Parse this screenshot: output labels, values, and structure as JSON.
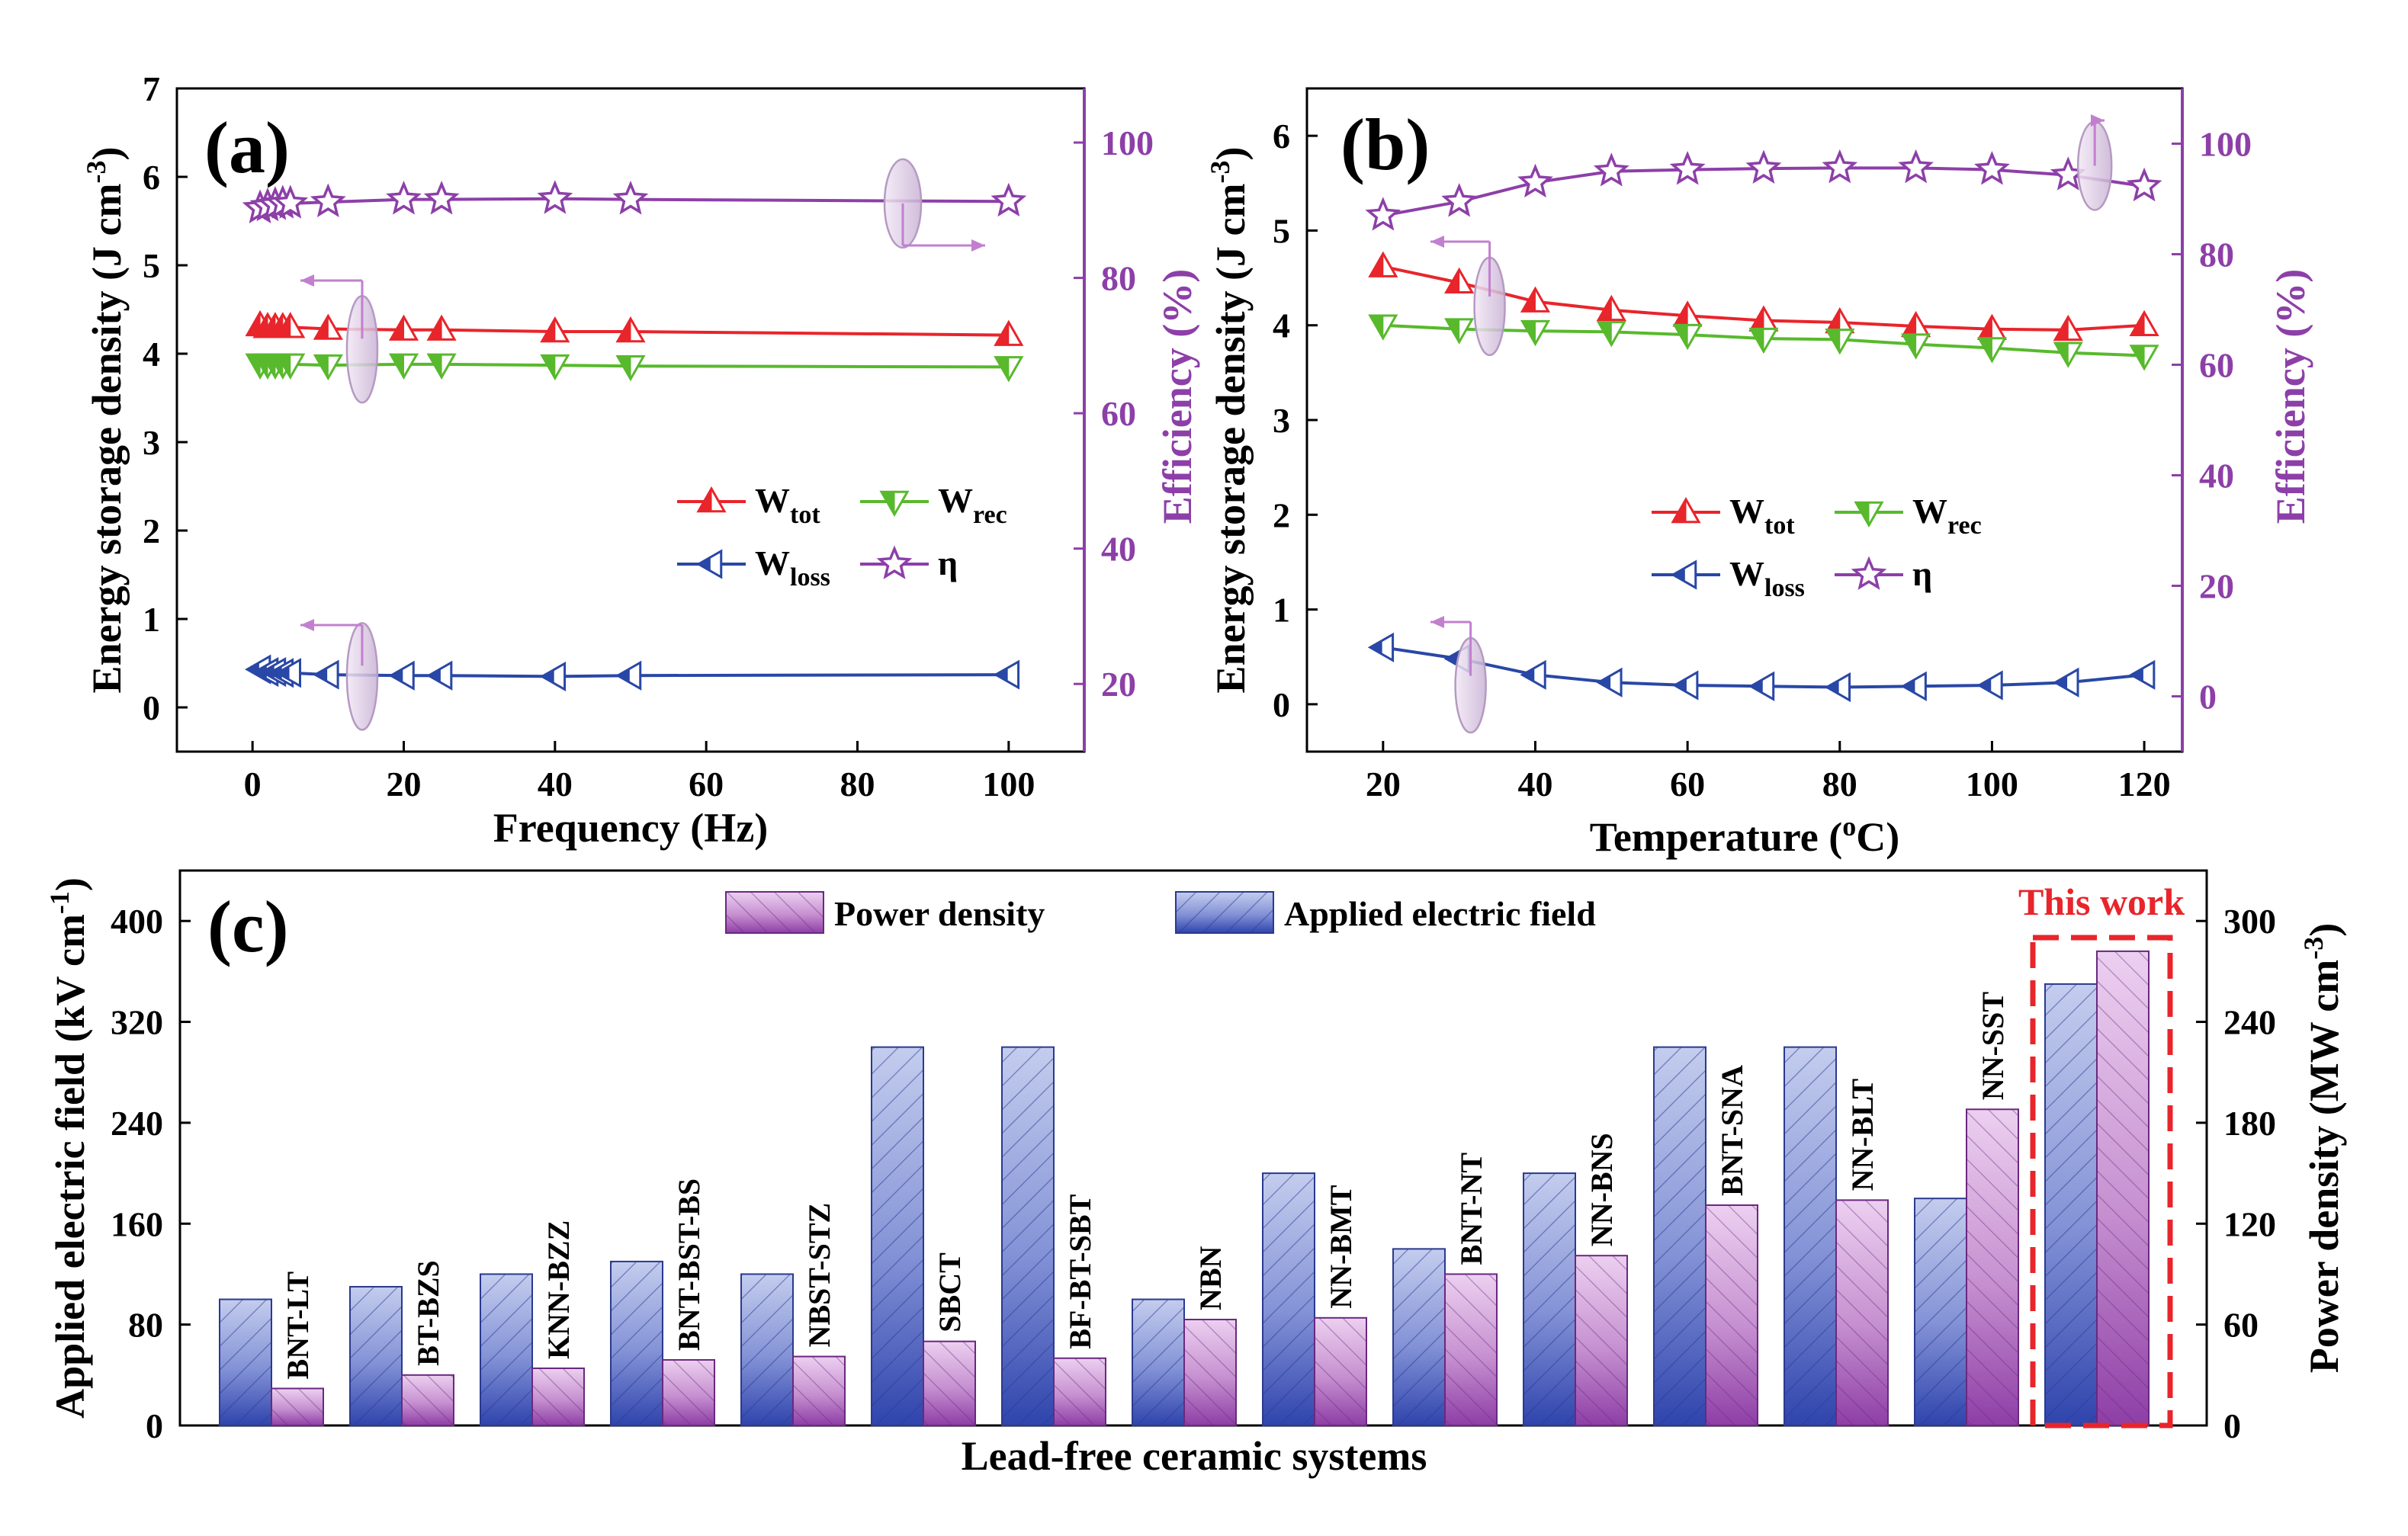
{
  "colors": {
    "wtot": "#e8252b",
    "wrec": "#58b92d",
    "wloss": "#2947a6",
    "eta": "#8d3fa8",
    "blue_fill": "#3d52b5",
    "blue_light": "#c4cdee",
    "purple_fill": "#9a4fb0",
    "purple_light": "#ecd0f0",
    "highlight": "#e8252b"
  },
  "chart_data": [
    {
      "panel": "(a)",
      "type": "line",
      "xlabel": "Frequency (Hz)",
      "ylabel": "Energy storage density (J cm",
      "ylabel_sup": "-3",
      "ylabel_close": ")",
      "y2label": "Efficiency (%)",
      "xlim": [
        -10,
        110
      ],
      "ylim": [
        -0.5,
        7
      ],
      "y2lim": [
        10,
        108
      ],
      "xticks": [
        "0",
        "20",
        "40",
        "60",
        "80",
        "100"
      ],
      "yticks": [
        "0",
        "1",
        "2",
        "3",
        "4",
        "5",
        "6",
        "7"
      ],
      "y2ticks": [
        "20",
        "40",
        "60",
        "80",
        "100"
      ],
      "x": [
        1,
        2,
        3,
        4,
        5,
        10,
        20,
        25,
        40,
        50,
        100
      ],
      "series": [
        {
          "name": "W",
          "sub": "tot",
          "key": "wtot",
          "marker": "tri-up",
          "axis": "left",
          "values": [
            4.32,
            4.3,
            4.3,
            4.3,
            4.3,
            4.28,
            4.27,
            4.27,
            4.25,
            4.25,
            4.21
          ]
        },
        {
          "name": "W",
          "sub": "rec",
          "key": "wrec",
          "marker": "tri-down",
          "axis": "left",
          "values": [
            3.88,
            3.88,
            3.88,
            3.88,
            3.88,
            3.87,
            3.88,
            3.88,
            3.87,
            3.86,
            3.85
          ]
        },
        {
          "name": "W",
          "sub": "loss",
          "key": "wloss",
          "marker": "tri-left",
          "axis": "left",
          "values": [
            0.43,
            0.4,
            0.4,
            0.39,
            0.39,
            0.37,
            0.36,
            0.36,
            0.35,
            0.36,
            0.37
          ]
        },
        {
          "name": "η",
          "sub": "",
          "key": "eta",
          "marker": "star",
          "axis": "right",
          "values": [
            90.3,
            90.6,
            90.8,
            91.0,
            91.0,
            91.2,
            91.6,
            91.6,
            91.7,
            91.6,
            91.3
          ]
        }
      ]
    },
    {
      "panel": "(b)",
      "type": "line",
      "xlabel": "Temperature (",
      "xlabel_sup": "o",
      "xlabel_close": "C)",
      "ylabel": "Energy storage density (J cm",
      "ylabel_sup": "-3",
      "ylabel_close": ")",
      "y2label": "Efficiency (%)",
      "xlim": [
        10,
        125
      ],
      "ylim": [
        -0.5,
        6.5
      ],
      "y2lim": [
        -10,
        110
      ],
      "xticks": [
        "20",
        "40",
        "60",
        "80",
        "100",
        "120"
      ],
      "yticks": [
        "0",
        "1",
        "2",
        "3",
        "4",
        "5",
        "6"
      ],
      "y2ticks": [
        "0",
        "20",
        "40",
        "60",
        "80",
        "100"
      ],
      "x": [
        20,
        30,
        40,
        50,
        60,
        70,
        80,
        90,
        100,
        110,
        120
      ],
      "series": [
        {
          "name": "W",
          "sub": "tot",
          "key": "wtot",
          "marker": "tri-up",
          "axis": "left",
          "values": [
            4.62,
            4.45,
            4.25,
            4.16,
            4.1,
            4.05,
            4.03,
            3.99,
            3.96,
            3.95,
            4.0
          ]
        },
        {
          "name": "W",
          "sub": "rec",
          "key": "wrec",
          "marker": "tri-down",
          "axis": "left",
          "values": [
            4.0,
            3.96,
            3.94,
            3.93,
            3.9,
            3.86,
            3.85,
            3.8,
            3.76,
            3.71,
            3.68
          ]
        },
        {
          "name": "W",
          "sub": "loss",
          "key": "wloss",
          "marker": "tri-left",
          "axis": "left",
          "values": [
            0.6,
            0.48,
            0.31,
            0.23,
            0.2,
            0.19,
            0.18,
            0.19,
            0.2,
            0.23,
            0.31
          ]
        },
        {
          "name": "η",
          "sub": "",
          "key": "eta",
          "marker": "star",
          "axis": "right",
          "values": [
            87,
            89.5,
            93,
            95,
            95.3,
            95.5,
            95.6,
            95.6,
            95.3,
            94.3,
            92.3
          ]
        }
      ]
    },
    {
      "panel": "(c)",
      "type": "bar",
      "xlabel": "Lead-free ceramic systems",
      "ylabel": "Applied electric field (kV cm",
      "ylabel_sup": "-1",
      "ylabel_close": ")",
      "y2label": "Power density (MW cm",
      "y2label_sup": "-3",
      "y2label_close": ")",
      "ylim": [
        0,
        440
      ],
      "y2lim": [
        0,
        330
      ],
      "yticks": [
        "0",
        "80",
        "160",
        "240",
        "320",
        "400"
      ],
      "y2ticks": [
        "0",
        "60",
        "120",
        "180",
        "240",
        "300"
      ],
      "categories": [
        "BNT-LT",
        "BT-BZS",
        "KNN-BZZ",
        "BNT-BST-BS",
        "NBST-STZ",
        "SBCT",
        "BF-BT-SBT",
        "NBN",
        "NN-BMT",
        "BNT-NT",
        "NN-BNS",
        "BNT-SNA",
        "NN-BLT",
        "NN-SST",
        ""
      ],
      "series": [
        {
          "name": "Applied electric field",
          "axis": "left",
          "values": [
            100,
            110,
            120,
            130,
            120,
            300,
            300,
            100,
            200,
            140,
            200,
            300,
            300,
            180,
            350
          ]
        },
        {
          "name": "Power density",
          "axis": "right",
          "values": [
            22,
            30,
            34,
            39,
            41,
            50,
            40,
            63,
            64,
            90,
            101,
            131,
            134,
            188,
            282
          ]
        }
      ],
      "highlight_label": "This work"
    }
  ]
}
